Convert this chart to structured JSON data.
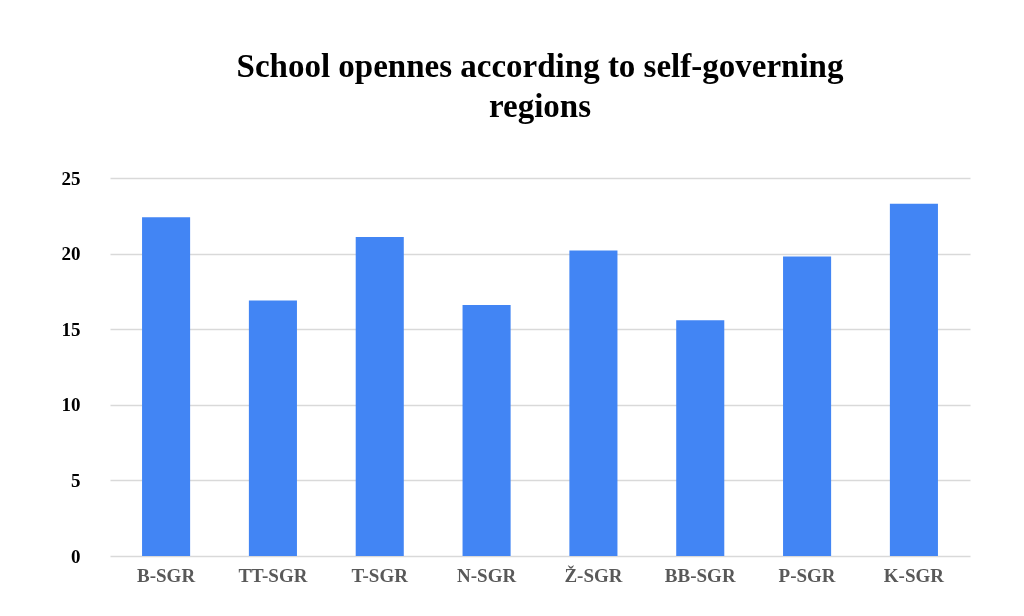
{
  "chart_data": {
    "type": "bar",
    "title": "School opennes according to self-governing regions",
    "categories": [
      "B-SGR",
      "TT-SGR",
      "T-SGR",
      "N-SGR",
      "Ž-SGR",
      "BB-SGR",
      "P-SGR",
      "K-SGR"
    ],
    "values": [
      22.4,
      16.9,
      21.1,
      16.6,
      20.2,
      15.6,
      19.8,
      23.3
    ],
    "color": "#4285f4",
    "ylim": [
      0,
      25
    ],
    "yticks": [
      0,
      5,
      10,
      15,
      20,
      25
    ],
    "grid": "y"
  }
}
